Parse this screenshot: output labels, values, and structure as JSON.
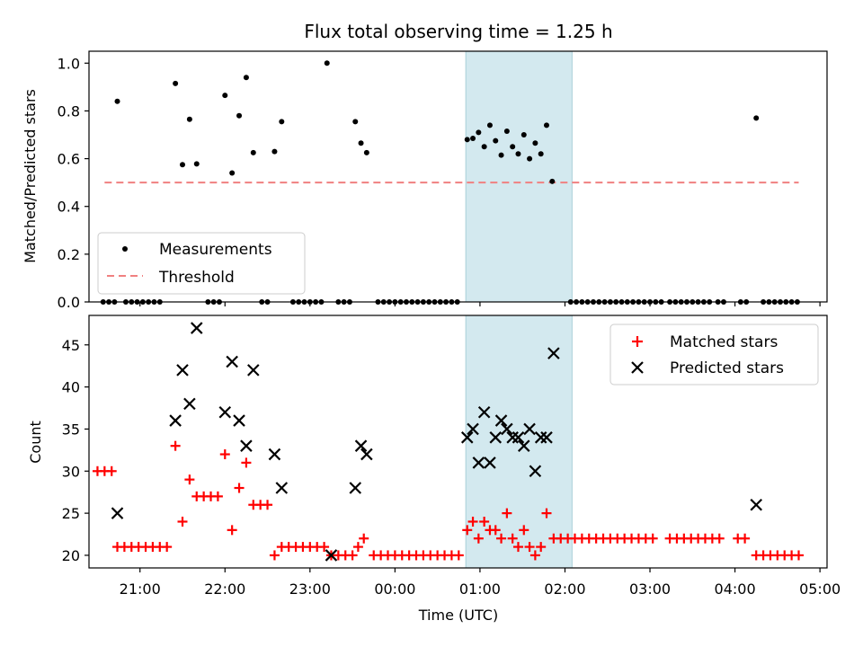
{
  "chart_data": [
    {
      "type": "scatter",
      "title": "Flux total observing time = 1.25 h",
      "xlabel": "",
      "ylabel": "Matched/Predicted stars",
      "xlim": [
        "20:24",
        "05:05"
      ],
      "ylim": [
        0.0,
        1.05
      ],
      "yticks": [
        "0.0",
        "0.2",
        "0.4",
        "0.6",
        "0.8",
        "1.0"
      ],
      "highlight_span": [
        "00:50",
        "02:05"
      ],
      "highlight_color": "#d3e9ef",
      "threshold": {
        "y": 0.5,
        "x_from": "20:35",
        "x_to": "04:45",
        "color": "#f08080"
      },
      "legend": {
        "position": "lower-left",
        "entries": [
          {
            "label": "Measurements",
            "marker": "dot"
          },
          {
            "label": "Threshold",
            "marker": "dashed-line"
          }
        ]
      },
      "series": [
        {
          "name": "Measurements",
          "color": "#000000",
          "points": [
            [
              "20:34",
              0.0
            ],
            [
              "20:38",
              0.0
            ],
            [
              "20:42",
              0.0
            ],
            [
              "20:44",
              0.84
            ],
            [
              "20:50",
              0.0
            ],
            [
              "20:54",
              0.0
            ],
            [
              "20:58",
              0.0
            ],
            [
              "21:02",
              0.0
            ],
            [
              "21:06",
              0.0
            ],
            [
              "21:10",
              0.0
            ],
            [
              "21:14",
              0.0
            ],
            [
              "21:25",
              0.915
            ],
            [
              "21:30",
              0.575
            ],
            [
              "21:35",
              0.765
            ],
            [
              "21:40",
              0.578
            ],
            [
              "21:48",
              0.0
            ],
            [
              "21:52",
              0.0
            ],
            [
              "21:56",
              0.0
            ],
            [
              "22:00",
              0.865
            ],
            [
              "22:05",
              0.54
            ],
            [
              "22:10",
              0.78
            ],
            [
              "22:15",
              0.94
            ],
            [
              "22:20",
              0.625
            ],
            [
              "22:26",
              0.0
            ],
            [
              "22:30",
              0.0
            ],
            [
              "22:35",
              0.63
            ],
            [
              "22:40",
              0.755
            ],
            [
              "22:48",
              0.0
            ],
            [
              "22:52",
              0.0
            ],
            [
              "22:56",
              0.0
            ],
            [
              "23:00",
              0.0
            ],
            [
              "23:04",
              0.0
            ],
            [
              "23:08",
              0.0
            ],
            [
              "23:12",
              1.0
            ],
            [
              "23:20",
              0.0
            ],
            [
              "23:24",
              0.0
            ],
            [
              "23:28",
              0.0
            ],
            [
              "23:32",
              0.755
            ],
            [
              "23:36",
              0.665
            ],
            [
              "23:40",
              0.625
            ],
            [
              "23:48",
              0.0
            ],
            [
              "23:52",
              0.0
            ],
            [
              "23:56",
              0.0
            ],
            [
              "24:00",
              0.0
            ],
            [
              "24:04",
              0.0
            ],
            [
              "24:08",
              0.0
            ],
            [
              "24:12",
              0.0
            ],
            [
              "24:16",
              0.0
            ],
            [
              "24:20",
              0.0
            ],
            [
              "24:24",
              0.0
            ],
            [
              "24:28",
              0.0
            ],
            [
              "24:32",
              0.0
            ],
            [
              "24:36",
              0.0
            ],
            [
              "24:40",
              0.0
            ],
            [
              "24:44",
              0.0
            ],
            [
              "24:51",
              0.68
            ],
            [
              "24:55",
              0.685
            ],
            [
              "24:59",
              0.71
            ],
            [
              "25:03",
              0.65
            ],
            [
              "25:07",
              0.74
            ],
            [
              "25:11",
              0.675
            ],
            [
              "25:15",
              0.615
            ],
            [
              "25:19",
              0.715
            ],
            [
              "25:23",
              0.65
            ],
            [
              "25:27",
              0.62
            ],
            [
              "25:31",
              0.7
            ],
            [
              "25:35",
              0.6
            ],
            [
              "25:39",
              0.665
            ],
            [
              "25:43",
              0.62
            ],
            [
              "25:47",
              0.74
            ],
            [
              "25:51",
              0.505
            ],
            [
              "26:04",
              0.0
            ],
            [
              "26:08",
              0.0
            ],
            [
              "26:12",
              0.0
            ],
            [
              "26:16",
              0.0
            ],
            [
              "26:20",
              0.0
            ],
            [
              "26:24",
              0.0
            ],
            [
              "26:28",
              0.0
            ],
            [
              "26:32",
              0.0
            ],
            [
              "26:36",
              0.0
            ],
            [
              "26:40",
              0.0
            ],
            [
              "26:44",
              0.0
            ],
            [
              "26:48",
              0.0
            ],
            [
              "26:52",
              0.0
            ],
            [
              "26:56",
              0.0
            ],
            [
              "27:00",
              0.0
            ],
            [
              "27:04",
              0.0
            ],
            [
              "27:08",
              0.0
            ],
            [
              "27:14",
              0.0
            ],
            [
              "27:18",
              0.0
            ],
            [
              "27:22",
              0.0
            ],
            [
              "27:26",
              0.0
            ],
            [
              "27:30",
              0.0
            ],
            [
              "27:34",
              0.0
            ],
            [
              "27:38",
              0.0
            ],
            [
              "27:42",
              0.0
            ],
            [
              "27:48",
              0.0
            ],
            [
              "27:52",
              0.0
            ],
            [
              "28:04",
              0.0
            ],
            [
              "28:08",
              0.0
            ],
            [
              "28:15",
              0.77
            ],
            [
              "28:20",
              0.0
            ],
            [
              "28:24",
              0.0
            ],
            [
              "28:28",
              0.0
            ],
            [
              "28:32",
              0.0
            ],
            [
              "28:36",
              0.0
            ],
            [
              "28:40",
              0.0
            ],
            [
              "28:44",
              0.0
            ]
          ]
        }
      ]
    },
    {
      "type": "scatter",
      "title": "",
      "xlabel": "Time (UTC)",
      "ylabel": "Count",
      "xlim": [
        "20:24",
        "05:05"
      ],
      "ylim": [
        18.5,
        48.5
      ],
      "yticks": [
        "20",
        "25",
        "30",
        "35",
        "40",
        "45"
      ],
      "xticks": [
        "21:00",
        "22:00",
        "23:00",
        "00:00",
        "01:00",
        "02:00",
        "03:00",
        "04:00",
        "05:00"
      ],
      "highlight_span": [
        "00:50",
        "02:05"
      ],
      "highlight_color": "#d3e9ef",
      "legend": {
        "position": "top-right",
        "entries": [
          {
            "label": "Matched stars",
            "marker": "plus",
            "color": "#ff0000"
          },
          {
            "label": "Predicted stars",
            "marker": "x",
            "color": "#000000"
          }
        ]
      },
      "series": [
        {
          "name": "Matched stars",
          "color": "#ff0000",
          "points": [
            [
              "20:30",
              30
            ],
            [
              "20:35",
              30
            ],
            [
              "20:40",
              30
            ],
            [
              "20:44",
              21
            ],
            [
              "20:49",
              21
            ],
            [
              "20:54",
              21
            ],
            [
              "20:59",
              21
            ],
            [
              "21:04",
              21
            ],
            [
              "21:09",
              21
            ],
            [
              "21:14",
              21
            ],
            [
              "21:19",
              21
            ],
            [
              "21:25",
              33
            ],
            [
              "21:30",
              24
            ],
            [
              "21:35",
              29
            ],
            [
              "21:40",
              27
            ],
            [
              "21:45",
              27
            ],
            [
              "21:50",
              27
            ],
            [
              "21:55",
              27
            ],
            [
              "22:00",
              32
            ],
            [
              "22:05",
              23
            ],
            [
              "22:10",
              28
            ],
            [
              "22:15",
              31
            ],
            [
              "22:20",
              26
            ],
            [
              "22:25",
              26
            ],
            [
              "22:30",
              26
            ],
            [
              "22:35",
              20
            ],
            [
              "22:40",
              21
            ],
            [
              "22:45",
              21
            ],
            [
              "22:50",
              21
            ],
            [
              "22:55",
              21
            ],
            [
              "23:00",
              21
            ],
            [
              "23:05",
              21
            ],
            [
              "23:10",
              21
            ],
            [
              "23:15",
              20
            ],
            [
              "23:20",
              20
            ],
            [
              "23:25",
              20
            ],
            [
              "23:30",
              20
            ],
            [
              "23:34",
              21
            ],
            [
              "23:38",
              22
            ],
            [
              "23:45",
              20
            ],
            [
              "23:50",
              20
            ],
            [
              "23:55",
              20
            ],
            [
              "24:00",
              20
            ],
            [
              "24:05",
              20
            ],
            [
              "24:10",
              20
            ],
            [
              "24:15",
              20
            ],
            [
              "24:20",
              20
            ],
            [
              "24:25",
              20
            ],
            [
              "24:30",
              20
            ],
            [
              "24:35",
              20
            ],
            [
              "24:40",
              20
            ],
            [
              "24:45",
              20
            ],
            [
              "24:51",
              23
            ],
            [
              "24:55",
              24
            ],
            [
              "24:59",
              22
            ],
            [
              "25:03",
              24
            ],
            [
              "25:07",
              23
            ],
            [
              "25:11",
              23
            ],
            [
              "25:15",
              22
            ],
            [
              "25:19",
              25
            ],
            [
              "25:23",
              22
            ],
            [
              "25:27",
              21
            ],
            [
              "25:31",
              23
            ],
            [
              "25:35",
              21
            ],
            [
              "25:39",
              20
            ],
            [
              "25:43",
              21
            ],
            [
              "25:47",
              25
            ],
            [
              "25:52",
              22
            ],
            [
              "25:57",
              22
            ],
            [
              "26:02",
              22
            ],
            [
              "26:07",
              22
            ],
            [
              "26:12",
              22
            ],
            [
              "26:17",
              22
            ],
            [
              "26:22",
              22
            ],
            [
              "26:27",
              22
            ],
            [
              "26:32",
              22
            ],
            [
              "26:37",
              22
            ],
            [
              "26:42",
              22
            ],
            [
              "26:47",
              22
            ],
            [
              "26:52",
              22
            ],
            [
              "26:57",
              22
            ],
            [
              "27:02",
              22
            ],
            [
              "27:14",
              22
            ],
            [
              "27:19",
              22
            ],
            [
              "27:24",
              22
            ],
            [
              "27:29",
              22
            ],
            [
              "27:34",
              22
            ],
            [
              "27:39",
              22
            ],
            [
              "27:44",
              22
            ],
            [
              "27:49",
              22
            ],
            [
              "28:02",
              22
            ],
            [
              "28:07",
              22
            ],
            [
              "28:15",
              20
            ],
            [
              "28:20",
              20
            ],
            [
              "28:25",
              20
            ],
            [
              "28:30",
              20
            ],
            [
              "28:35",
              20
            ],
            [
              "28:40",
              20
            ],
            [
              "28:45",
              20
            ]
          ]
        },
        {
          "name": "Predicted stars",
          "color": "#000000",
          "points": [
            [
              "20:44",
              25
            ],
            [
              "21:25",
              36
            ],
            [
              "21:30",
              42
            ],
            [
              "21:35",
              38
            ],
            [
              "21:40",
              47
            ],
            [
              "22:00",
              37
            ],
            [
              "22:05",
              43
            ],
            [
              "22:10",
              36
            ],
            [
              "22:15",
              33
            ],
            [
              "22:20",
              42
            ],
            [
              "22:35",
              32
            ],
            [
              "22:40",
              28
            ],
            [
              "23:15",
              20
            ],
            [
              "23:32",
              28
            ],
            [
              "23:36",
              33
            ],
            [
              "23:40",
              32
            ],
            [
              "24:51",
              34
            ],
            [
              "24:55",
              35
            ],
            [
              "24:59",
              31
            ],
            [
              "25:03",
              37
            ],
            [
              "25:07",
              31
            ],
            [
              "25:11",
              34
            ],
            [
              "25:15",
              36
            ],
            [
              "25:19",
              35
            ],
            [
              "25:23",
              34
            ],
            [
              "25:27",
              34
            ],
            [
              "25:31",
              33
            ],
            [
              "25:35",
              35
            ],
            [
              "25:39",
              30
            ],
            [
              "25:43",
              34
            ],
            [
              "25:47",
              34
            ],
            [
              "25:52",
              44
            ],
            [
              "28:15",
              26
            ]
          ]
        }
      ]
    }
  ]
}
